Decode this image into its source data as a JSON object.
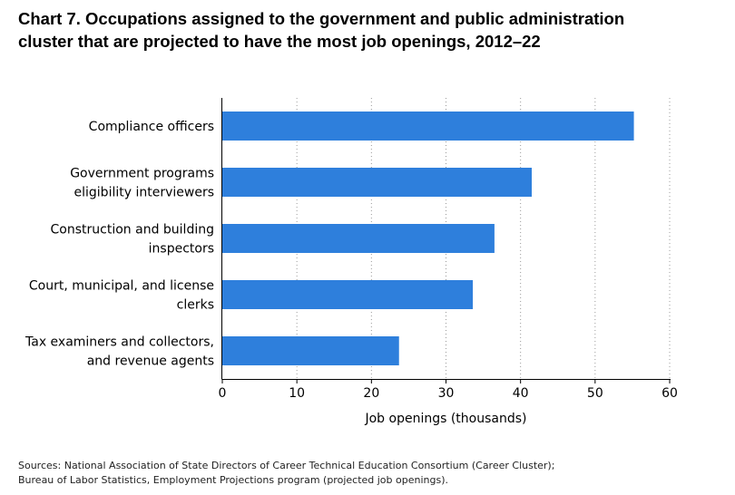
{
  "chart_data": {
    "type": "bar",
    "orientation": "horizontal",
    "title_lines": [
      "Chart 7. Occupations assigned to the government and public administration",
      "cluster that are projected to have the most job openings, 2012–22"
    ],
    "categories": [
      [
        "Compliance officers"
      ],
      [
        "Government programs",
        "eligibility interviewers"
      ],
      [
        "Construction and building",
        "inspectors"
      ],
      [
        "Court, municipal, and license",
        "clerks"
      ],
      [
        "Tax examiners and collectors,",
        "and revenue agents"
      ]
    ],
    "values": [
      55.2,
      41.5,
      36.5,
      33.6,
      23.7
    ],
    "xlabel": "Job openings (thousands)",
    "ylabel": "",
    "xlim": [
      0,
      60
    ],
    "xticks": [
      "0",
      "10",
      "20",
      "30",
      "40",
      "50",
      "60"
    ],
    "grid": "vertical dotted",
    "bar_color": "#2e7fdc"
  },
  "source_lines": [
    "Sources: National Association of State Directors of Career Technical Education Consortium (Career Cluster);",
    "Bureau of Labor Statistics, Employment Projections program (projected job openings)."
  ]
}
